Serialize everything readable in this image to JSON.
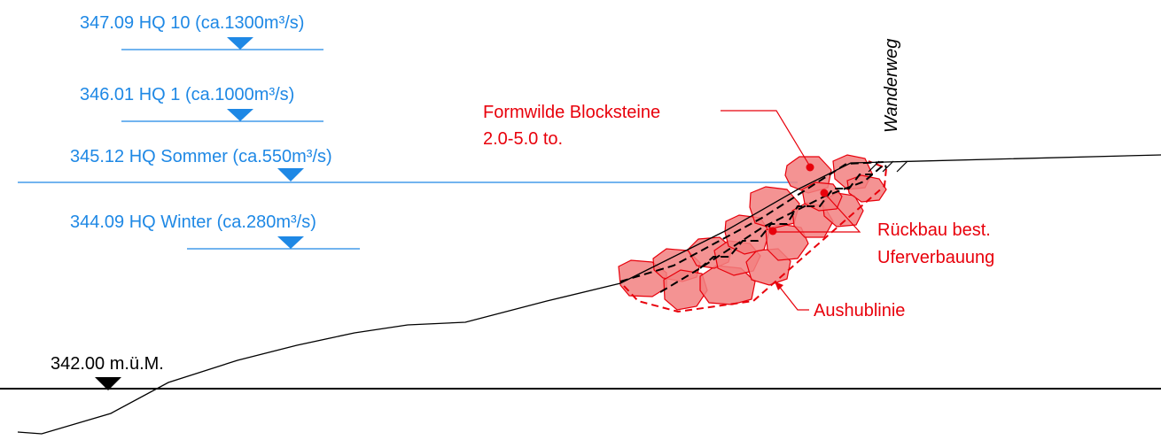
{
  "water_levels": [
    {
      "text": "347.09  HQ 10 (ca.1300m³/s)"
    },
    {
      "text": "346.01  HQ 1 (ca.1000m³/s)"
    },
    {
      "text": "345.12 HQ Sommer (ca.550m³/s)"
    },
    {
      "text": "344.09 HQ Winter (ca.280m³/s)"
    }
  ],
  "reference_level": {
    "text": "342.00 m.ü.M."
  },
  "annotations": {
    "blocks": [
      "Formwilde Blocksteine",
      "2.0-5.0 to."
    ],
    "removal": [
      "Rückbau best.",
      "Uferverbauung"
    ],
    "excavation": "Aushublinie",
    "path": "Wanderweg"
  },
  "colors": {
    "water": "#1e88e5",
    "rock_fill": "#f28080",
    "rock_stroke": "#e8000b",
    "terrain": "#000000"
  }
}
